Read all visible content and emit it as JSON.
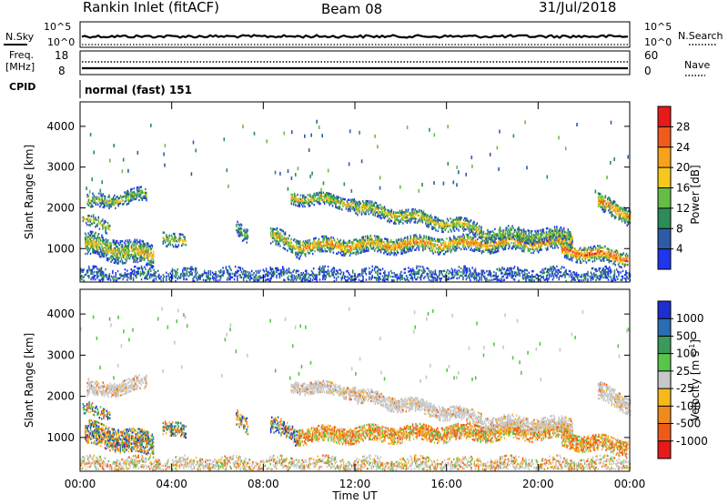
{
  "header": {
    "station": "Rankin Inlet (fitACF)",
    "beam": "Beam 08",
    "date": "31/Jul/2018"
  },
  "top_panels": {
    "nsky_label": "N.Sky",
    "nsky_ticks": [
      "10^5",
      "10^0"
    ],
    "nsearch_label": "N.Search",
    "nsearch_ticks": [
      "10^5",
      "10^0"
    ],
    "freq_label_1": "Freq.",
    "freq_label_2": "[MHz]",
    "freq_ticks": [
      "18",
      "8"
    ],
    "nave_label": "Nave",
    "nave_ticks": [
      "60",
      "0"
    ],
    "cpid_label": "CPID",
    "cpid_value": "normal (fast) 151"
  },
  "chart_data": [
    {
      "type": "heatmap",
      "name": "power-panel",
      "ylabel": "Slant Range [km]",
      "yticks": [
        "4000",
        "3000",
        "2000",
        "1000"
      ],
      "ytick_values": [
        4000,
        3000,
        2000,
        1000
      ],
      "ylim": [
        180,
        4600
      ],
      "xlim": [
        0,
        24
      ],
      "colorbar_label": "Power [dB]",
      "colorbar_ticks": [
        "28",
        "24",
        "20",
        "16",
        "12",
        "8",
        "4"
      ],
      "colorbar_colors": [
        "#e8191b",
        "#f15a1c",
        "#f8a11b",
        "#f6c81e",
        "#66bd46",
        "#2c8d58",
        "#2d5ba7",
        "#1f35f0"
      ]
    },
    {
      "type": "heatmap",
      "name": "velocity-panel",
      "ylabel": "Slant Range [km]",
      "yticks": [
        "4000",
        "3000",
        "2000",
        "1000"
      ],
      "ytick_values": [
        4000,
        3000,
        2000,
        1000
      ],
      "ylim": [
        180,
        4600
      ],
      "xlim": [
        0,
        24
      ],
      "xlabel": "Time UT",
      "xticks": [
        "00:00",
        "04:00",
        "08:00",
        "12:00",
        "16:00",
        "20:00",
        "00:00"
      ],
      "xtick_values": [
        0,
        4,
        8,
        12,
        16,
        20,
        24
      ],
      "colorbar_label": "Velocity [m s",
      "colorbar_label_sup": "-1",
      "colorbar_label_end": "]",
      "colorbar_ticks": [
        "1000",
        "500",
        "100",
        "25",
        "-25",
        "-100",
        "-500",
        "-1000"
      ],
      "colorbar_colors": [
        "#1d2fd1",
        "#2b6cb3",
        "#3b9a5a",
        "#58c44a",
        "#c8c8c8",
        "#f7b81c",
        "#f08a1c",
        "#ef5a1b",
        "#e61a1a"
      ]
    }
  ]
}
